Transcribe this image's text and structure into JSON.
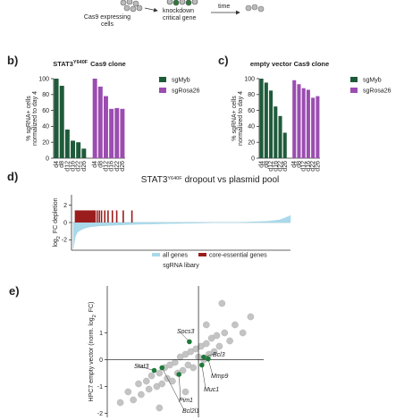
{
  "schematic": {
    "left": [
      "Cas9 expressing",
      "cells"
    ],
    "middle": [
      "knockdown",
      "critical gene"
    ],
    "right": "time"
  },
  "chart_data": [
    {
      "type": "bar",
      "panel": "b)",
      "title": "STAT3",
      "title_superscript": "Y640F",
      "title_rest": "Cas9 clone",
      "ylabel": [
        "% sgRNA+ cells",
        "normalized to day 4"
      ],
      "categories": [
        "d4",
        "d8",
        "d12",
        "d16",
        "d22",
        "d26"
      ],
      "series": [
        {
          "name": "sgMyb",
          "color": "#1e5b3a",
          "values": [
            100,
            91,
            36,
            22,
            20,
            12
          ]
        },
        {
          "name": "sgRosa26",
          "color": "#9b4db0",
          "values": [
            100,
            90,
            78,
            62,
            63,
            62
          ]
        }
      ],
      "ylim": [
        0,
        100
      ],
      "yticks": [
        0,
        20,
        40,
        60,
        80,
        100
      ]
    },
    {
      "type": "bar",
      "panel": "c)",
      "title": "empty vector Cas9 clone",
      "ylabel": [
        "% sgRNA+ cells",
        "normalized to day 4"
      ],
      "categories": [
        "d4",
        "d8",
        "d12",
        "d16",
        "d22",
        "d26"
      ],
      "series": [
        {
          "name": "sgMyb",
          "color": "#1e5b3a",
          "values": [
            100,
            95,
            85,
            65,
            53,
            32
          ]
        },
        {
          "name": "sgRosa26",
          "color": "#9b4db0",
          "values": [
            98,
            93,
            88,
            86,
            76,
            78
          ]
        }
      ],
      "ylim": [
        0,
        100
      ],
      "yticks": [
        0,
        20,
        40,
        60,
        80,
        100
      ]
    },
    {
      "type": "dropout",
      "panel": "d)",
      "title": "STAT3",
      "title_superscript": "Y640F",
      "title_rest": "dropout vs plasmid pool",
      "ylabel": "log",
      "ylabel_sub": "2",
      "ylabel_rest": "FC depletion",
      "xlabel": "sgRNA libary",
      "series": [
        {
          "name": "all genes",
          "color": "#a9d9ea",
          "x": [
            0,
            1,
            2,
            4,
            6,
            8,
            12,
            16,
            20,
            25,
            30,
            35,
            40,
            45,
            50,
            55,
            60,
            65,
            70,
            75,
            80,
            85,
            90,
            95,
            100
          ],
          "values": [
            -3.0,
            -1.6,
            -1.1,
            -0.8,
            -0.6,
            -0.5,
            -0.4,
            -0.35,
            -0.3,
            -0.25,
            -0.2,
            -0.18,
            -0.15,
            -0.12,
            -0.1,
            -0.08,
            -0.05,
            -0.02,
            0,
            0.02,
            0.05,
            0.1,
            0.15,
            0.3,
            0.8
          ]
        },
        {
          "name": "core-essential genes",
          "color": "#9b1c1c",
          "x": [
            1,
            1.5,
            2,
            2.5,
            3,
            3.5,
            4,
            4.5,
            5,
            5.5,
            6,
            6.5,
            7,
            7.5,
            8,
            8.5,
            9,
            9.5,
            10,
            11,
            12,
            13,
            14.5,
            16,
            18,
            20,
            23,
            27
          ],
          "values": [
            1.4,
            1.4,
            1.4,
            1.4,
            1.4,
            1.4,
            1.4,
            1.4,
            1.4,
            1.4,
            1.4,
            1.4,
            1.4,
            1.4,
            1.4,
            1.4,
            1.4,
            1.4,
            1.4,
            1.4,
            1.4,
            1.4,
            1.4,
            1.4,
            1.4,
            1.4,
            1.4,
            1.4
          ]
        }
      ],
      "xlim": [
        0,
        100
      ],
      "ylim": [
        -3.2,
        3.2
      ],
      "yticks": [
        -2,
        0,
        2
      ]
    },
    {
      "type": "scatter",
      "panel": "e)",
      "ylabel": "HPC7 empty vector (norm. log",
      "ylabel_sub": "2",
      "ylabel_rest": "FC)",
      "series": [
        {
          "color": "#c4c4c4",
          "x": [
            -3,
            -2.7,
            -2.5,
            -2.3,
            -2.2,
            -2,
            -1.9,
            -1.8,
            -1.6,
            -1.5,
            -1.4,
            -1.3,
            -1.2,
            -1.1,
            -1,
            -0.9,
            -0.8,
            -0.7,
            -0.6,
            -0.5,
            -0.4,
            -0.3,
            -0.2,
            -0.1,
            0,
            0.1,
            0.2,
            0.3,
            0.4,
            0.5,
            0.6,
            0.7,
            0.8,
            1,
            1.2,
            1.4,
            1.7,
            2,
            -1.5,
            -0.5,
            0.3,
            0.9
          ],
          "values": [
            -1.6,
            -1.2,
            -1.5,
            -0.9,
            -1.3,
            -0.8,
            -1.1,
            -0.6,
            -1.0,
            -0.5,
            -0.9,
            -0.3,
            -0.7,
            -0.2,
            -0.8,
            -0.1,
            -0.5,
            0.1,
            -0.4,
            0.2,
            -0.2,
            0.3,
            -0.3,
            0.4,
            0.1,
            0.5,
            0.0,
            0.6,
            0.2,
            0.8,
            0.3,
            0.9,
            0.5,
            1.0,
            0.7,
            1.3,
            1.0,
            1.6,
            -1.8,
            -1.2,
            1.3,
            2.1
          ]
        },
        {
          "color": "#1e7a3a",
          "labels": [
            "Socs3",
            "Bcl3",
            "Mmp9",
            "Muc1",
            "Stat3",
            "Pim1",
            "Bcl2l1"
          ],
          "x": [
            -0.35,
            0.2,
            0.37,
            0.13,
            -1.7,
            -0.75,
            -1.4
          ],
          "values": [
            0.67,
            0.1,
            0.03,
            -0.2,
            -0.4,
            -0.55,
            -0.3
          ]
        }
      ],
      "xlim": [
        -3.5,
        2.5
      ],
      "ylim": [
        -2.15,
        2.75
      ],
      "yticks": [
        -2,
        -1,
        0,
        1
      ]
    }
  ]
}
